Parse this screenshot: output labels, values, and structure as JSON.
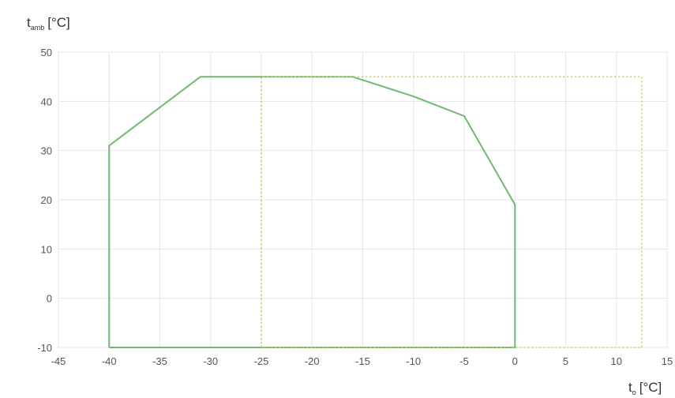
{
  "chart_data": {
    "type": "line",
    "title": "",
    "y_axis": {
      "main": "t",
      "sub": "amb",
      "unit": "[°C]",
      "lim": [
        -10,
        50
      ],
      "ticks": [
        -10,
        0,
        10,
        20,
        30,
        40,
        50
      ]
    },
    "x_axis": {
      "main": "t",
      "sub": "o",
      "unit": "[°C]",
      "lim": [
        -45,
        15
      ],
      "ticks": [
        -45,
        -40,
        -35,
        -30,
        -25,
        -20,
        -15,
        -10,
        -5,
        0,
        5,
        10,
        15
      ]
    },
    "grid": true,
    "series": [
      {
        "style": "solid",
        "color": "#70b870",
        "x": [
          -40,
          -40,
          -31,
          -16,
          -10,
          -5,
          0,
          0,
          -40
        ],
        "y": [
          -10,
          31,
          45,
          45,
          41,
          37,
          19,
          -10,
          -10
        ]
      },
      {
        "style": "dotted",
        "color": "#c8cf5a",
        "x": [
          -25,
          -25,
          12.5,
          12.5,
          -25
        ],
        "y": [
          -10,
          45,
          45,
          -10,
          -10
        ]
      }
    ]
  }
}
